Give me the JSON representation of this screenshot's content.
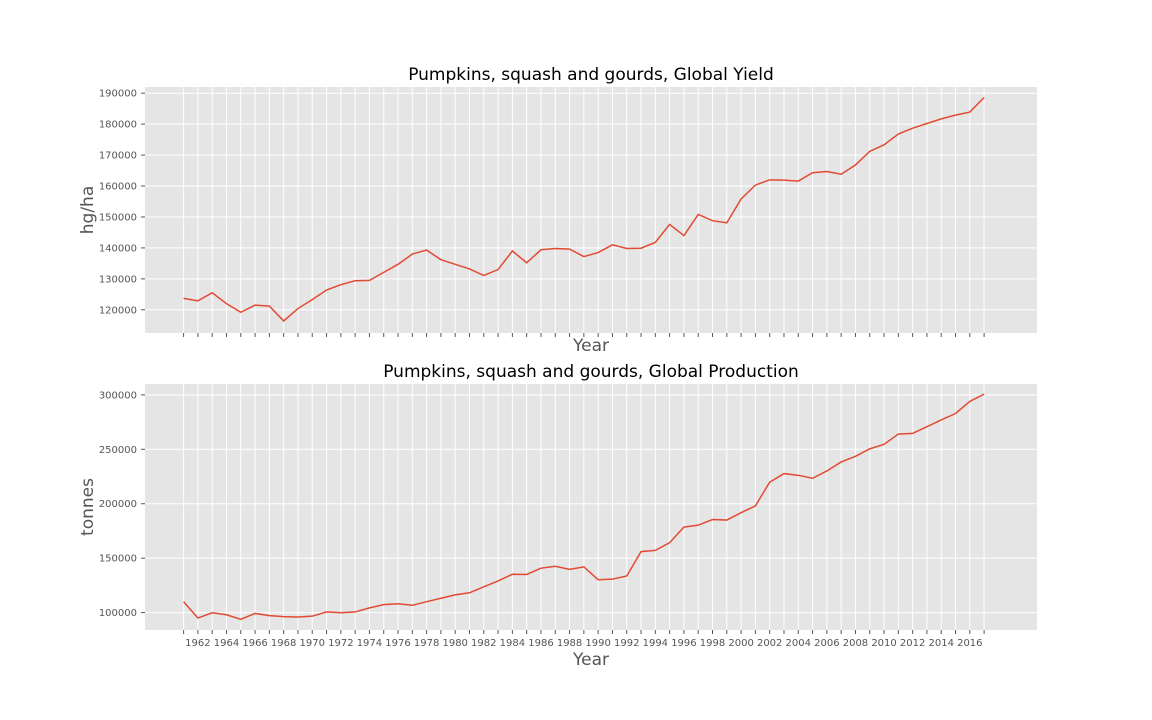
{
  "chart_data": [
    {
      "type": "line",
      "title": "Pumpkins, squash and gourds, Global Yield",
      "xlabel": "Year",
      "ylabel": "hg/ha",
      "ylim": [
        112500,
        192000
      ],
      "yticks": [
        120000,
        130000,
        140000,
        150000,
        160000,
        170000,
        180000,
        190000
      ],
      "grid": true,
      "color": "#E24A33",
      "x": [
        1961,
        1962,
        1963,
        1964,
        1965,
        1966,
        1967,
        1968,
        1969,
        1970,
        1971,
        1972,
        1973,
        1974,
        1975,
        1976,
        1977,
        1978,
        1979,
        1980,
        1981,
        1982,
        1983,
        1984,
        1985,
        1986,
        1987,
        1988,
        1989,
        1990,
        1991,
        1992,
        1993,
        1994,
        1995,
        1996,
        1997,
        1998,
        1999,
        2000,
        2001,
        2002,
        2003,
        2004,
        2005,
        2006,
        2007,
        2008,
        2009,
        2010,
        2011,
        2012,
        2013,
        2014,
        2015,
        2016,
        2017
      ],
      "values": [
        123700,
        122900,
        125500,
        122000,
        119200,
        121500,
        121200,
        116400,
        120400,
        123300,
        126400,
        128100,
        129400,
        129500,
        132100,
        134700,
        138000,
        139300,
        136200,
        134700,
        133200,
        131100,
        133000,
        139000,
        135200,
        139400,
        139800,
        139600,
        137200,
        138500,
        141000,
        139800,
        139900,
        141800,
        147600,
        144000,
        150800,
        148800,
        148100,
        155800,
        160300,
        162000,
        161900,
        161600,
        164300,
        164700,
        163800,
        166800,
        171200,
        173300,
        176800,
        178700,
        180200,
        181700,
        182900,
        183900,
        188600
      ]
    },
    {
      "type": "line",
      "title": "Pumpkins, squash and gourds, Global Production",
      "xlabel": "Year",
      "ylabel": "tonnes",
      "ylim": [
        84000,
        310000
      ],
      "yticks": [
        100000,
        150000,
        200000,
        250000,
        300000
      ],
      "grid": true,
      "color": "#E24A33",
      "x": [
        1961,
        1962,
        1963,
        1964,
        1965,
        1966,
        1967,
        1968,
        1969,
        1970,
        1971,
        1972,
        1973,
        1974,
        1975,
        1976,
        1977,
        1978,
        1979,
        1980,
        1981,
        1982,
        1983,
        1984,
        1985,
        1986,
        1987,
        1988,
        1989,
        1990,
        1991,
        1992,
        1993,
        1994,
        1995,
        1996,
        1997,
        1998,
        1999,
        2000,
        2001,
        2002,
        2003,
        2004,
        2005,
        2006,
        2007,
        2008,
        2009,
        2010,
        2011,
        2012,
        2013,
        2014,
        2015,
        2016,
        2017
      ],
      "values": [
        110000,
        95000,
        99800,
        98000,
        93800,
        99200,
        97200,
        96300,
        95900,
        96700,
        100600,
        99900,
        100600,
        104300,
        107300,
        108100,
        106700,
        110000,
        113200,
        116300,
        118200,
        123700,
        129100,
        135200,
        135000,
        140800,
        142600,
        139700,
        142000,
        130200,
        130700,
        133600,
        156000,
        157100,
        164200,
        178500,
        180300,
        185500,
        185000,
        191800,
        198000,
        219800,
        227700,
        226100,
        223400,
        230100,
        238400,
        243600,
        250400,
        254600,
        264000,
        264600,
        270800,
        277000,
        282900,
        294000,
        300700
      ]
    }
  ],
  "xticks": [
    "1962",
    "1964",
    "1966",
    "1968",
    "1970",
    "1972",
    "1974",
    "1976",
    "1978",
    "1980",
    "1982",
    "1984",
    "1986",
    "1988",
    "1990",
    "1992",
    "1994",
    "1996",
    "1998",
    "2000",
    "2002",
    "2004",
    "2006",
    "2008",
    "2010",
    "2012",
    "2014",
    "2016"
  ]
}
